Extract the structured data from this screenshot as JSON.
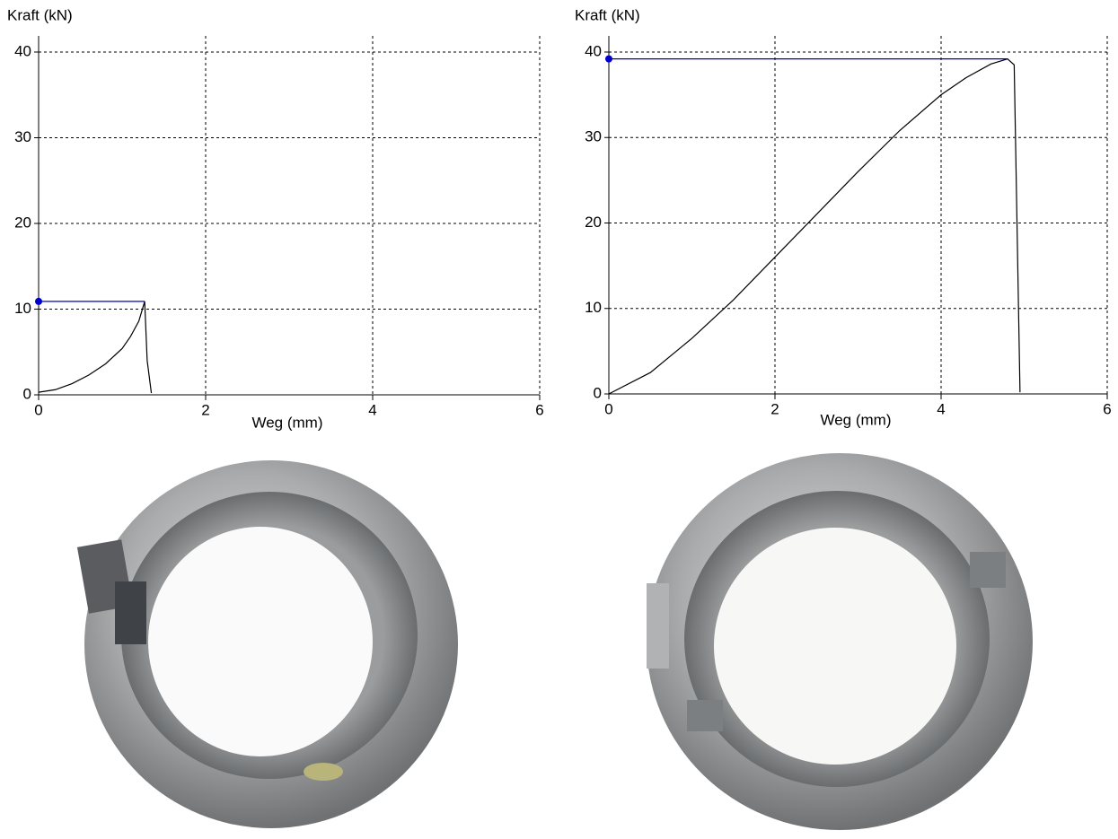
{
  "chart_data": [
    {
      "type": "line",
      "y_label": "Kraft (kN)",
      "x_label": "Weg (mm)",
      "xlim": [
        0,
        6
      ],
      "ylim": [
        0,
        40
      ],
      "xticks": [
        0,
        2,
        4,
        6
      ],
      "yticks": [
        0,
        10,
        20,
        30,
        40
      ],
      "grid": true,
      "series": [
        {
          "color": "#000000",
          "x": [
            0,
            0.2,
            0.4,
            0.6,
            0.8,
            1.0,
            1.1,
            1.2,
            1.27,
            1.3,
            1.35
          ],
          "values": [
            0.3,
            0.6,
            1.3,
            2.3,
            3.6,
            5.4,
            6.8,
            8.6,
            10.9,
            4,
            0.2
          ]
        },
        {
          "color": "#0000cc",
          "marker": "start",
          "x": [
            0,
            1.27
          ],
          "values": [
            10.9,
            10.9
          ]
        }
      ]
    },
    {
      "type": "line",
      "y_label": "Kraft (kN)",
      "x_label": "Weg (mm)",
      "xlim": [
        0,
        6
      ],
      "ylim": [
        0,
        40
      ],
      "xticks": [
        0,
        2,
        4,
        6
      ],
      "yticks": [
        0,
        10,
        20,
        30,
        40
      ],
      "grid": true,
      "series": [
        {
          "color": "#000000",
          "x": [
            0,
            0.5,
            1,
            1.5,
            2,
            2.5,
            3,
            3.5,
            4,
            4.3,
            4.6,
            4.8,
            4.88,
            4.95
          ],
          "values": [
            0,
            2.5,
            6.5,
            11,
            16,
            21,
            26,
            30.8,
            35,
            37,
            38.6,
            39.2,
            38.5,
            0.2
          ]
        },
        {
          "color": "#0000cc",
          "marker": "start",
          "x": [
            0,
            4.8
          ],
          "values": [
            39.2,
            39.2
          ]
        }
      ]
    }
  ]
}
